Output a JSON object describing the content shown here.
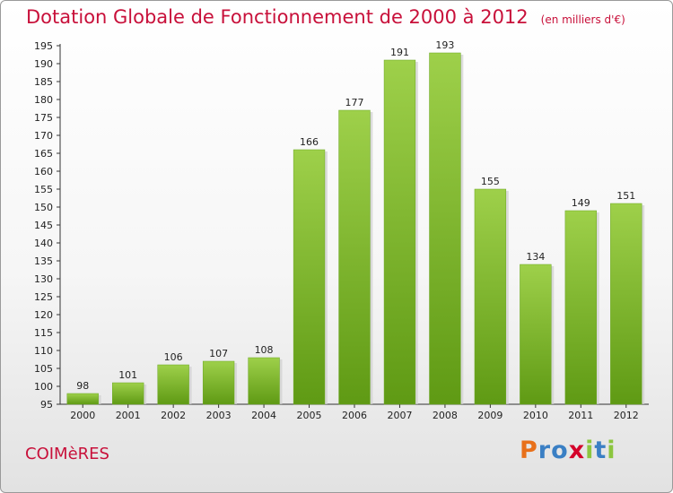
{
  "title": "Dotation Globale de Fonctionnement de 2000 à 2012",
  "unit_note": "(en milliers d'€)",
  "commune": "COIMèRES",
  "brand": {
    "letters": [
      "P",
      "r",
      "o",
      "x",
      "i",
      "t",
      "i"
    ],
    "colors": [
      "#e8701a",
      "#3a7fc4",
      "#3a7fc4",
      "#d4002a",
      "#8cc63f",
      "#3a7fc4",
      "#8cc63f"
    ]
  },
  "chart_data": {
    "type": "bar",
    "categories": [
      "2000",
      "2001",
      "2002",
      "2003",
      "2004",
      "2005",
      "2006",
      "2007",
      "2008",
      "2009",
      "2010",
      "2011",
      "2012"
    ],
    "values": [
      98,
      101,
      106,
      107,
      108,
      166,
      177,
      191,
      193,
      155,
      134,
      149,
      151
    ],
    "ylim": [
      95,
      195
    ],
    "ytick_step": 5,
    "grid": false,
    "bar_color": "#7ab832"
  }
}
